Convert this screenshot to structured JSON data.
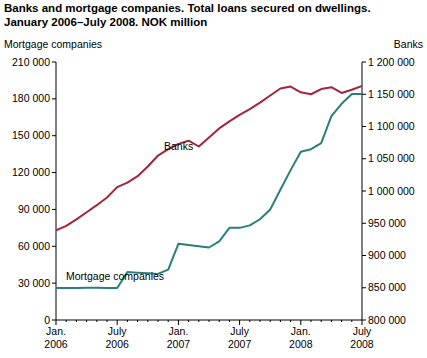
{
  "chart_data": {
    "type": "line",
    "title": "Banks and mortgage companies. Total loans secured on dwellings.\nJanuary 2006–July 2008. NOK million",
    "y_label": "Mortgage companies",
    "y2_label": "Banks",
    "categories": [
      "Jan.\n2006",
      null,
      null,
      null,
      null,
      null,
      "July\n2006",
      null,
      null,
      null,
      null,
      null,
      "Jan.\n2007",
      null,
      null,
      null,
      null,
      null,
      "July\n2007",
      null,
      null,
      null,
      null,
      null,
      "Jan.\n2008",
      null,
      null,
      null,
      null,
      null,
      "July\n2008"
    ],
    "series": [
      {
        "name": "Banks",
        "color": "#a3243b",
        "axis": "y2",
        "values": [
          939000,
          946000,
          956000,
          967000,
          978000,
          990000,
          1006000,
          1013000,
          1023000,
          1038000,
          1055000,
          1065000,
          1073000,
          1078000,
          1069000,
          1083000,
          1097000,
          1108000,
          1118000,
          1127000,
          1137000,
          1148000,
          1159000,
          1162000,
          1153000,
          1150000,
          1158000,
          1161000,
          1152000,
          1157000,
          1163000
        ]
      },
      {
        "name": "Mortgage companies",
        "color": "#2a7f7a",
        "values": [
          26000,
          26000,
          26000,
          26200,
          26200,
          26000,
          26000,
          39000,
          38500,
          38000,
          37500,
          41000,
          62000,
          61000,
          60000,
          59000,
          64000,
          75000,
          75000,
          77000,
          82000,
          90000,
          106000,
          122000,
          137000,
          139000,
          144000,
          166000,
          176000,
          184000,
          184000
        ]
      }
    ],
    "ylim": [
      0,
      210000
    ],
    "yticks": [
      0,
      {
        "value": 30000,
        "label": "30 000"
      },
      {
        "value": 60000,
        "label": "60 000"
      },
      {
        "value": 90000,
        "label": "90 000"
      },
      {
        "value": 120000,
        "label": "120 000"
      },
      {
        "value": 150000,
        "label": "150 000"
      },
      {
        "value": 180000,
        "label": "180 000"
      },
      {
        "value": 210000,
        "label": "210 000"
      }
    ],
    "y2lim": [
      800000,
      1200000
    ],
    "y2ticks": [
      {
        "value": 800000,
        "label": "800 000"
      },
      {
        "value": 850000,
        "label": "850 000"
      },
      {
        "value": 900000,
        "label": "900 000"
      },
      {
        "value": 950000,
        "label": "950 000"
      },
      {
        "value": 1000000,
        "label": "1 000 000"
      },
      {
        "value": 1050000,
        "label": "1 050 000"
      },
      {
        "value": 1100000,
        "label": "1 100 000"
      },
      {
        "value": 1150000,
        "label": "1 150 000"
      },
      {
        "value": 1200000,
        "label": "1 200 000"
      }
    ],
    "grid": false
  }
}
